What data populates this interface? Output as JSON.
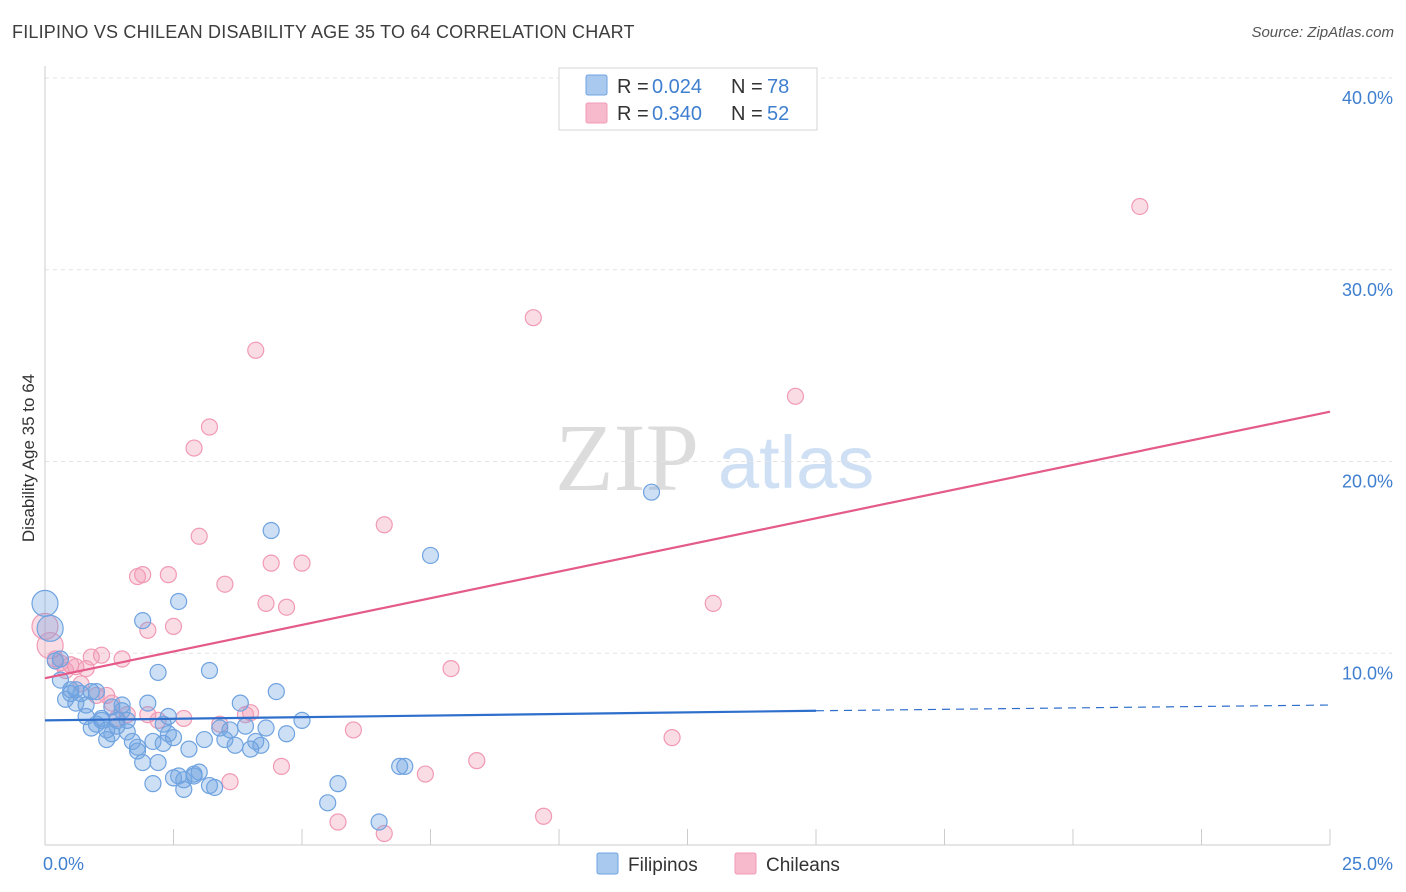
{
  "header": {
    "title": "FILIPINO VS CHILEAN DISABILITY AGE 35 TO 64 CORRELATION CHART",
    "source": "Source: ZipAtlas.com"
  },
  "watermark": {
    "zip": "ZIP",
    "atlas": "atlas"
  },
  "legend": {
    "r_label": "R =",
    "n_label": "N =",
    "entries": [
      {
        "r": "0.024",
        "n": "78",
        "color": "#a9c9ee"
      },
      {
        "r": "0.340",
        "n": "52",
        "color": "#f7b9cc"
      }
    ]
  },
  "bottom_legend": {
    "filipinos": "Filipinos",
    "chileans": "Chileans"
  },
  "chart_data": {
    "type": "scatter",
    "title": "FILIPINO VS CHILEAN DISABILITY AGE 35 TO 64 CORRELATION CHART",
    "xlabel": "",
    "ylabel": "Disability Age 35 to 64",
    "xlim": [
      0,
      25
    ],
    "ylim": [
      0,
      40
    ],
    "x_tick_labels": [
      "0.0%",
      "25.0%"
    ],
    "y_tick_labels": [
      "10.0%",
      "20.0%",
      "30.0%",
      "40.0%"
    ],
    "y_ticks": [
      10,
      20,
      30,
      40
    ],
    "grid": true,
    "colors": {
      "filipinos": "#6fa3e0",
      "filipinos_line": "#2f6fcc",
      "chileans": "#f19ab5",
      "chileans_line": "#e45a8a"
    },
    "series": [
      {
        "name": "Filipinos",
        "r": 0.024,
        "n": 78,
        "trend": {
          "x0": 0,
          "y0": 6.5,
          "x1": 15,
          "y1": 7.0,
          "dash_to_x": 25,
          "dash_to_y": 7.3
        },
        "points": [
          [
            0.0,
            12.6
          ],
          [
            0.1,
            11.3
          ],
          [
            0.2,
            9.6
          ],
          [
            0.3,
            8.6
          ],
          [
            0.4,
            7.6
          ],
          [
            0.5,
            8.1
          ],
          [
            0.6,
            7.4
          ],
          [
            0.7,
            7.9
          ],
          [
            0.8,
            6.7
          ],
          [
            0.9,
            6.1
          ],
          [
            1.0,
            8.0
          ],
          [
            1.1,
            6.6
          ],
          [
            1.2,
            5.5
          ],
          [
            1.3,
            5.8
          ],
          [
            1.4,
            6.2
          ],
          [
            1.5,
            7.3
          ],
          [
            1.6,
            6.5
          ],
          [
            1.7,
            5.4
          ],
          [
            1.8,
            4.9
          ],
          [
            1.9,
            4.3
          ],
          [
            2.0,
            7.4
          ],
          [
            2.1,
            5.4
          ],
          [
            2.2,
            4.3
          ],
          [
            2.3,
            5.3
          ],
          [
            2.4,
            6.7
          ],
          [
            2.5,
            3.5
          ],
          [
            2.6,
            3.6
          ],
          [
            2.7,
            2.9
          ],
          [
            2.8,
            5.0
          ],
          [
            2.9,
            3.7
          ],
          [
            3.0,
            3.8
          ],
          [
            3.1,
            5.5
          ],
          [
            3.3,
            3.0
          ],
          [
            3.4,
            6.1
          ],
          [
            3.5,
            5.5
          ],
          [
            3.7,
            5.2
          ],
          [
            3.8,
            7.4
          ],
          [
            3.9,
            6.2
          ],
          [
            4.0,
            5.0
          ],
          [
            4.2,
            5.2
          ],
          [
            4.5,
            8.0
          ],
          [
            4.7,
            5.8
          ],
          [
            5.0,
            6.5
          ],
          [
            5.5,
            2.2
          ],
          [
            5.7,
            3.2
          ],
          [
            6.5,
            1.2
          ],
          [
            7.0,
            4.1
          ],
          [
            7.5,
            15.1
          ],
          [
            1.3,
            7.2
          ],
          [
            0.6,
            8.1
          ],
          [
            0.9,
            8.0
          ],
          [
            1.2,
            6.0
          ],
          [
            1.9,
            11.7
          ],
          [
            2.2,
            9.0
          ],
          [
            2.4,
            5.8
          ],
          [
            2.6,
            12.7
          ],
          [
            3.2,
            9.1
          ],
          [
            4.4,
            16.4
          ],
          [
            11.8,
            18.4
          ],
          [
            0.3,
            9.7
          ],
          [
            0.5,
            7.9
          ],
          [
            0.8,
            7.3
          ],
          [
            1.1,
            6.5
          ],
          [
            1.4,
            6.5
          ],
          [
            1.6,
            5.9
          ],
          [
            1.8,
            5.1
          ],
          [
            2.1,
            3.2
          ],
          [
            2.3,
            6.3
          ],
          [
            2.7,
            3.4
          ],
          [
            2.9,
            3.6
          ],
          [
            3.2,
            3.1
          ],
          [
            3.6,
            6.0
          ],
          [
            4.1,
            5.4
          ],
          [
            4.3,
            6.1
          ],
          [
            6.9,
            4.1
          ],
          [
            1.0,
            6.3
          ],
          [
            1.5,
            7.0
          ],
          [
            2.5,
            5.6
          ]
        ]
      },
      {
        "name": "Chileans",
        "r": 0.34,
        "n": 52,
        "trend": {
          "x0": 0,
          "y0": 8.7,
          "x1": 25,
          "y1": 22.6
        },
        "points": [
          [
            0.0,
            11.4
          ],
          [
            0.1,
            10.4
          ],
          [
            0.2,
            9.7
          ],
          [
            0.3,
            9.5
          ],
          [
            0.4,
            9.1
          ],
          [
            0.5,
            9.4
          ],
          [
            0.6,
            9.3
          ],
          [
            0.7,
            8.4
          ],
          [
            0.8,
            9.2
          ],
          [
            0.9,
            9.8
          ],
          [
            1.0,
            7.8
          ],
          [
            1.1,
            9.9
          ],
          [
            1.2,
            7.8
          ],
          [
            1.3,
            7.4
          ],
          [
            1.4,
            6.6
          ],
          [
            1.5,
            9.7
          ],
          [
            1.6,
            6.8
          ],
          [
            1.8,
            14.0
          ],
          [
            1.9,
            14.1
          ],
          [
            2.0,
            11.2
          ],
          [
            2.2,
            6.5
          ],
          [
            2.4,
            14.1
          ],
          [
            2.5,
            11.4
          ],
          [
            2.7,
            6.6
          ],
          [
            2.9,
            20.7
          ],
          [
            3.0,
            16.1
          ],
          [
            3.2,
            21.8
          ],
          [
            3.4,
            6.3
          ],
          [
            3.5,
            13.6
          ],
          [
            3.6,
            3.3
          ],
          [
            3.9,
            6.8
          ],
          [
            4.1,
            25.8
          ],
          [
            4.3,
            12.6
          ],
          [
            4.4,
            14.7
          ],
          [
            4.6,
            4.1
          ],
          [
            4.7,
            12.4
          ],
          [
            5.0,
            14.7
          ],
          [
            5.7,
            1.2
          ],
          [
            6.0,
            6.0
          ],
          [
            6.6,
            16.7
          ],
          [
            7.4,
            3.7
          ],
          [
            7.9,
            9.2
          ],
          [
            8.4,
            4.4
          ],
          [
            9.5,
            27.5
          ],
          [
            9.7,
            1.5
          ],
          [
            12.2,
            5.6
          ],
          [
            13.0,
            12.6
          ],
          [
            14.6,
            23.4
          ],
          [
            21.3,
            33.3
          ],
          [
            6.6,
            0.6
          ],
          [
            2.0,
            6.8
          ],
          [
            4.0,
            6.9
          ]
        ]
      }
    ]
  }
}
